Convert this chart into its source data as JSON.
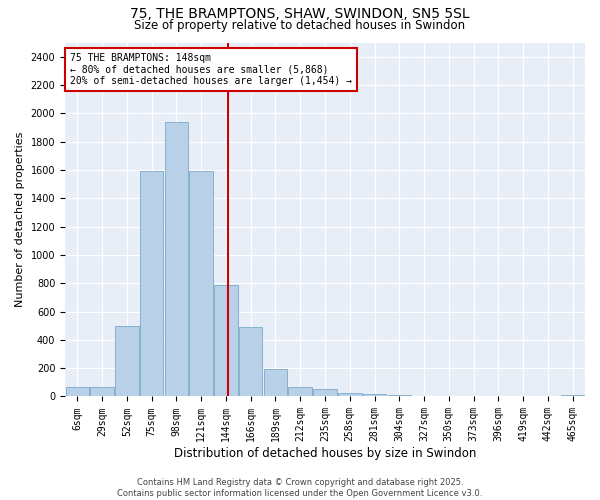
{
  "title_line1": "75, THE BRAMPTONS, SHAW, SWINDON, SN5 5SL",
  "title_line2": "Size of property relative to detached houses in Swindon",
  "xlabel": "Distribution of detached houses by size in Swindon",
  "ylabel": "Number of detached properties",
  "background_color": "#e8eef8",
  "bar_color": "#b8d0e8",
  "bar_edge_color": "#7aaac8",
  "categories": [
    "6sqm",
    "29sqm",
    "52sqm",
    "75sqm",
    "98sqm",
    "121sqm",
    "144sqm",
    "166sqm",
    "189sqm",
    "212sqm",
    "235sqm",
    "258sqm",
    "281sqm",
    "304sqm",
    "327sqm",
    "350sqm",
    "373sqm",
    "396sqm",
    "419sqm",
    "442sqm",
    "465sqm"
  ],
  "values": [
    70,
    70,
    500,
    1590,
    1940,
    1590,
    790,
    490,
    195,
    70,
    50,
    28,
    15,
    10,
    6,
    4,
    2,
    1,
    0,
    0,
    12
  ],
  "ylim": [
    0,
    2500
  ],
  "yticks": [
    0,
    200,
    400,
    600,
    800,
    1000,
    1200,
    1400,
    1600,
    1800,
    2000,
    2200,
    2400
  ],
  "vline_x_index": 6.08,
  "vline_color": "#cc0000",
  "annotation_title": "75 THE BRAMPTONS: 148sqm",
  "annotation_line1": "← 80% of detached houses are smaller (5,868)",
  "annotation_line2": "20% of semi-detached houses are larger (1,454) →",
  "annotation_box_facecolor": "#ffffff",
  "annotation_box_edge": "#cc0000",
  "footer_line1": "Contains HM Land Registry data © Crown copyright and database right 2025.",
  "footer_line2": "Contains public sector information licensed under the Open Government Licence v3.0.",
  "grid_color": "#ffffff",
  "fig_background": "#ffffff",
  "title1_fontsize": 10,
  "title2_fontsize": 8.5,
  "ylabel_fontsize": 8,
  "xlabel_fontsize": 8.5,
  "tick_fontsize": 7,
  "ann_fontsize": 7,
  "footer_fontsize": 6
}
